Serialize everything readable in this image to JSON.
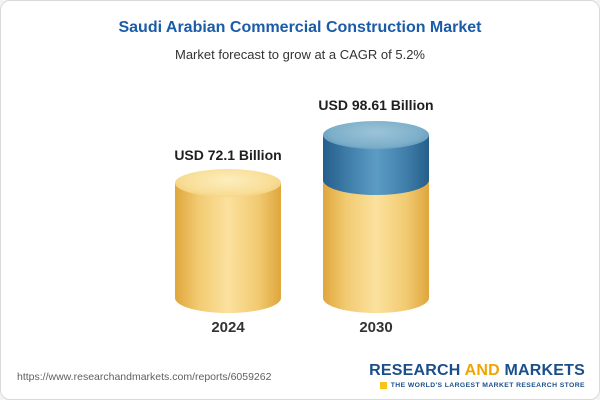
{
  "header": {
    "title": "Saudi Arabian Commercial Construction Market",
    "subtitle": "Market forecast to grow at a CAGR of 5.2%"
  },
  "chart_data": {
    "type": "bar",
    "categories": [
      "2024",
      "2030"
    ],
    "values": [
      72.1,
      98.61
    ],
    "unit": "USD Billion",
    "title": "Saudi Arabian Commercial Construction Market",
    "subtitle": "Market forecast to grow at a CAGR of 5.2%",
    "cagr_percent": 5.2,
    "data_labels": [
      "USD 72.1 Billion",
      "USD 98.61 Billion"
    ],
    "legend_position": "none",
    "grid": false,
    "bar_style": "3d-cylinder",
    "colors": {
      "base_segment": "#f2cb72",
      "growth_segment": "#417fab"
    }
  },
  "chart": {
    "bars": [
      {
        "value_label": "USD 72.1 Billion",
        "year": "2024"
      },
      {
        "value_label": "USD 98.61 Billion",
        "year": "2030"
      }
    ]
  },
  "footer": {
    "url": "https://www.researchandmarkets.com/reports/6059262",
    "logo": {
      "part1": "RESEARCH",
      "part2": "AND",
      "part3": "MARKETS",
      "tagline": "THE WORLD'S LARGEST MARKET RESEARCH STORE"
    }
  },
  "colors": {
    "title_blue": "#1a5ca8",
    "logo_blue": "#1b4f8a",
    "logo_orange": "#f0a500",
    "gold": "#f2cb72",
    "blue": "#417fab"
  }
}
